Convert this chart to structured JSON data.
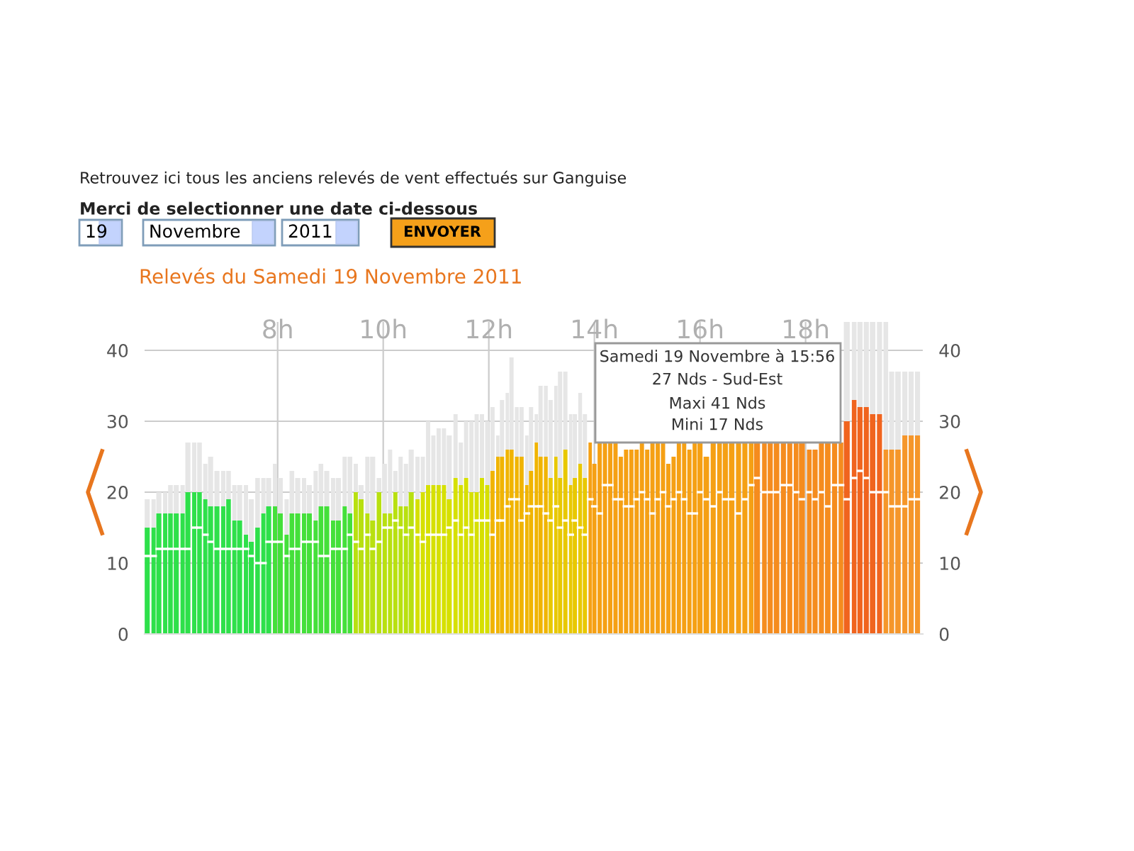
{
  "chart_data": {
    "type": "bar",
    "title": "Relevés du Samedi 19 Novembre 2011",
    "annotations": [
      "Retrouvez ici tous les anciens relevés de vent effectués sur Ganguise",
      "Merci de selectionner une date ci-dessous",
      "19",
      "Novembre",
      "2011",
      "ENVOYER",
      "Samedi 19 Novembre à 15:56",
      "27 Nds - Sud-Est",
      "Maxi 41 Nds",
      "Mini 17 Nds"
    ],
    "x": [
      5.53,
      5.65,
      5.75,
      5.87,
      5.97,
      6.08,
      6.2,
      6.3,
      6.42,
      6.52,
      6.63,
      6.73,
      6.85,
      6.97,
      7.07,
      7.18,
      7.28,
      7.4,
      7.5,
      7.62,
      7.73,
      7.83,
      7.95,
      8.05,
      8.17,
      8.27,
      8.38,
      8.5,
      8.6,
      8.72,
      8.82,
      8.93,
      9.05,
      9.15,
      9.27,
      9.37,
      9.48,
      9.58,
      9.7,
      9.8,
      9.92,
      10.03,
      10.13,
      10.23,
      10.33,
      10.43,
      10.53,
      10.65,
      10.75,
      10.85,
      10.95,
      11.05,
      11.15,
      11.25,
      11.37,
      11.47,
      11.57,
      11.67,
      11.77,
      11.87,
      11.97,
      12.07,
      12.17,
      12.25,
      12.35,
      12.43,
      12.53,
      12.62,
      12.72,
      12.8,
      12.9,
      12.98,
      13.08,
      13.17,
      13.27,
      13.35,
      13.45,
      13.55,
      13.63,
      13.73,
      13.82,
      13.92,
      14,
      14.1,
      14.2,
      14.3,
      14.4,
      14.5,
      14.6,
      14.7,
      14.8,
      14.9,
      15,
      15.1,
      15.2,
      15.3,
      15.4,
      15.5,
      15.6,
      15.7,
      15.8,
      15.9,
      16,
      16.12,
      16.25,
      16.37,
      16.48,
      16.6,
      16.73,
      16.85,
      16.97,
      17.08,
      17.22,
      17.33,
      17.45,
      17.58,
      17.7,
      17.82,
      17.93,
      18.07,
      18.18,
      18.3,
      18.42,
      18.55,
      18.67,
      18.78,
      18.92,
      19.03,
      19.15,
      19.27,
      19.4,
      19.52,
      19.63,
      19.75,
      19.88,
      20,
      20.12
    ],
    "stacked": true,
    "series": [
      {
        "colors": [
          "#2ee04a",
          "#2ee04a",
          "#2ee04a",
          "#2ee04a",
          "#2ee04a",
          "#2ee04a",
          "#2ee04a",
          "#2ee04a",
          "#2ee04a",
          "#2ee04a",
          "#2ee04a",
          "#2ee04a",
          "#2ee04a",
          "#2ee04a",
          "#2ee04a",
          "#2ee04a",
          "#2ee04a",
          "#2ee04a",
          "#2ee04a",
          "#2ee04a",
          "#2ee04a",
          "#2ee04a",
          "#44e03a",
          "#44e03a",
          "#44e03a",
          "#44e03a",
          "#44e03a",
          "#44e03a",
          "#44e03a",
          "#44e03a",
          "#44e03a",
          "#44e03a",
          "#44e03a",
          "#44e03a",
          "#44e03a",
          "#44e03a",
          "#b8e010",
          "#b8e010",
          "#b8e010",
          "#b8e010",
          "#b8e010",
          "#b8e010",
          "#b8e010",
          "#b8e010",
          "#b8e010",
          "#b8e010",
          "#b8e010",
          "#d6e000",
          "#d6e000",
          "#d6e000",
          "#d6e000",
          "#d6e000",
          "#d6e000",
          "#d6e000",
          "#d6e000",
          "#d6e000",
          "#d6e000",
          "#d6e000",
          "#d6e000",
          "#d6e000",
          "#d6e000",
          "#f0b400",
          "#f0b400",
          "#f0b400",
          "#f0b400",
          "#f0b400",
          "#f0b400",
          "#f0b400",
          "#f0b400",
          "#f0b400",
          "#f0b400",
          "#f0b400",
          "#f0b400",
          "#e8c800",
          "#e8c800",
          "#e8c800",
          "#e8c800",
          "#e8c800",
          "#e8c800",
          "#e8c800",
          "#e8c800",
          "#f5a014",
          "#f5a014",
          "#f5a014",
          "#f5a014",
          "#f5a014",
          "#f5a014",
          "#f5a014",
          "#f5a014",
          "#f5a014",
          "#f5a014",
          "#f5a014",
          "#f5a014",
          "#f5a014",
          "#f5a014",
          "#f5a014",
          "#f5a014",
          "#f5a014",
          "#f5a014",
          "#f5a014",
          "#f5a014",
          "#f5a014",
          "#f5a014",
          "#f5a014",
          "#f5a014",
          "#f5a014",
          "#f5a014",
          "#f5a014",
          "#f5a014",
          "#f5a014",
          "#f5a014",
          "#f58c1e",
          "#f58c1e",
          "#f58c1e",
          "#f58c1e",
          "#f58c1e",
          "#f58c1e",
          "#f58c1e",
          "#f58c1e",
          "#f58c1e",
          "#f58c1e",
          "#f58c1e",
          "#f58c1e",
          "#f58c1e",
          "#f58c1e",
          "#f0641e",
          "#f0641e",
          "#f0641e",
          "#f0641e",
          "#f0641e",
          "#f0641e",
          "#f5962a",
          "#f5962a",
          "#f5962a",
          "#f5962a",
          "#f5962a",
          "#f5962a"
        ],
        "values": [
          15,
          15,
          17,
          17,
          17,
          17,
          17,
          20,
          20,
          20,
          19,
          18,
          18,
          18,
          19,
          16,
          16,
          14,
          13,
          15,
          17,
          18,
          18,
          17,
          14,
          17,
          17,
          17,
          17,
          16,
          18,
          18,
          16,
          16,
          18,
          17,
          20,
          19,
          17,
          16,
          20,
          17,
          17,
          20,
          18,
          18,
          20,
          19,
          20,
          21,
          21,
          21,
          21,
          19,
          22,
          21,
          22,
          20,
          20,
          22,
          21,
          23,
          25,
          25,
          26,
          26,
          25,
          25,
          21,
          23,
          27,
          25,
          25,
          22,
          25,
          22,
          26,
          21,
          22,
          24,
          22,
          27,
          24,
          27,
          27,
          27,
          27,
          25,
          26,
          26,
          26,
          27,
          26,
          27,
          27,
          27,
          24,
          25,
          27,
          27,
          26,
          27,
          27,
          25,
          27,
          27,
          27,
          27,
          27,
          27,
          27,
          27,
          27,
          27,
          27,
          27,
          27,
          27,
          27,
          26,
          26,
          27,
          27,
          27,
          27,
          30,
          33,
          32,
          32,
          31,
          31,
          26,
          26,
          26,
          28,
          28,
          28
        ]
      },
      {
        "color": "#e6e6e6",
        "values": [
          4,
          4,
          3,
          3,
          4,
          4,
          4,
          7,
          7,
          7,
          5,
          7,
          5,
          5,
          4,
          5,
          5,
          7,
          6,
          7,
          5,
          4,
          6,
          5,
          5,
          6,
          5,
          5,
          4,
          7,
          6,
          5,
          6,
          6,
          7,
          8,
          4,
          2,
          8,
          9,
          2,
          7,
          9,
          3,
          7,
          6,
          6,
          6,
          5,
          9,
          7,
          8,
          8,
          9,
          9,
          6,
          8,
          10,
          11,
          9,
          9,
          9,
          3,
          8,
          8,
          13,
          7,
          7,
          7,
          9,
          4,
          10,
          10,
          11,
          10,
          15,
          11,
          10,
          9,
          10,
          9,
          null,
          null,
          null,
          null,
          null,
          null,
          null,
          null,
          null,
          null,
          null,
          null,
          null,
          null,
          null,
          null,
          null,
          null,
          null,
          null,
          null,
          null,
          null,
          null,
          null,
          null,
          null,
          null,
          null,
          null,
          null,
          null,
          null,
          null,
          null,
          null,
          null,
          null,
          null,
          null,
          null,
          null,
          null,
          null,
          14,
          11,
          12,
          12,
          13,
          13,
          18,
          11,
          11,
          9,
          9,
          9
        ]
      },
      {
        "type": "scatter",
        "color": "#ffffff",
        "marker": "square",
        "values": [
          11,
          11,
          12,
          12,
          12,
          12,
          12,
          12,
          15,
          15,
          14,
          13,
          12,
          12,
          12,
          12,
          12,
          12,
          11,
          10,
          10,
          13,
          13,
          13,
          11,
          12,
          12,
          13,
          13,
          13,
          11,
          11,
          12,
          12,
          12,
          14,
          13,
          12,
          14,
          12,
          13,
          15,
          15,
          16,
          15,
          14,
          15,
          14,
          13,
          14,
          14,
          14,
          14,
          15,
          16,
          14,
          15,
          14,
          16,
          16,
          16,
          14,
          16,
          16,
          18,
          19,
          19,
          16,
          17,
          18,
          18,
          18,
          17,
          16,
          18,
          15,
          16,
          14,
          16,
          15,
          14,
          19,
          18,
          17,
          21,
          21,
          19,
          19,
          18,
          18,
          19,
          20,
          19,
          17,
          19,
          20,
          18,
          19,
          20,
          19,
          17,
          17,
          20,
          19,
          18,
          20,
          19,
          19,
          17,
          19,
          21,
          22,
          20,
          20,
          20,
          21,
          21,
          20,
          19,
          20,
          19,
          20,
          18,
          21,
          21,
          19,
          22,
          23,
          22,
          20,
          20,
          20,
          18,
          18,
          18,
          19,
          19
        ]
      }
    ],
    "xlim": [
      5.48,
      20.22
    ],
    "xticks": [
      {
        "value": 8,
        "label": "8h"
      },
      {
        "value": 10,
        "label": "10h"
      },
      {
        "value": 12,
        "label": "12h"
      },
      {
        "value": 14,
        "label": "14h"
      },
      {
        "value": 16,
        "label": "16h"
      },
      {
        "value": 18,
        "label": "18h"
      }
    ],
    "ylim": [
      0,
      44
    ],
    "yticks": [
      0,
      10,
      20,
      30,
      40
    ],
    "y2lim": [
      0,
      44
    ],
    "y2ticks": [
      0,
      10,
      20,
      30,
      40
    ],
    "grid": true,
    "legend": false
  }
}
